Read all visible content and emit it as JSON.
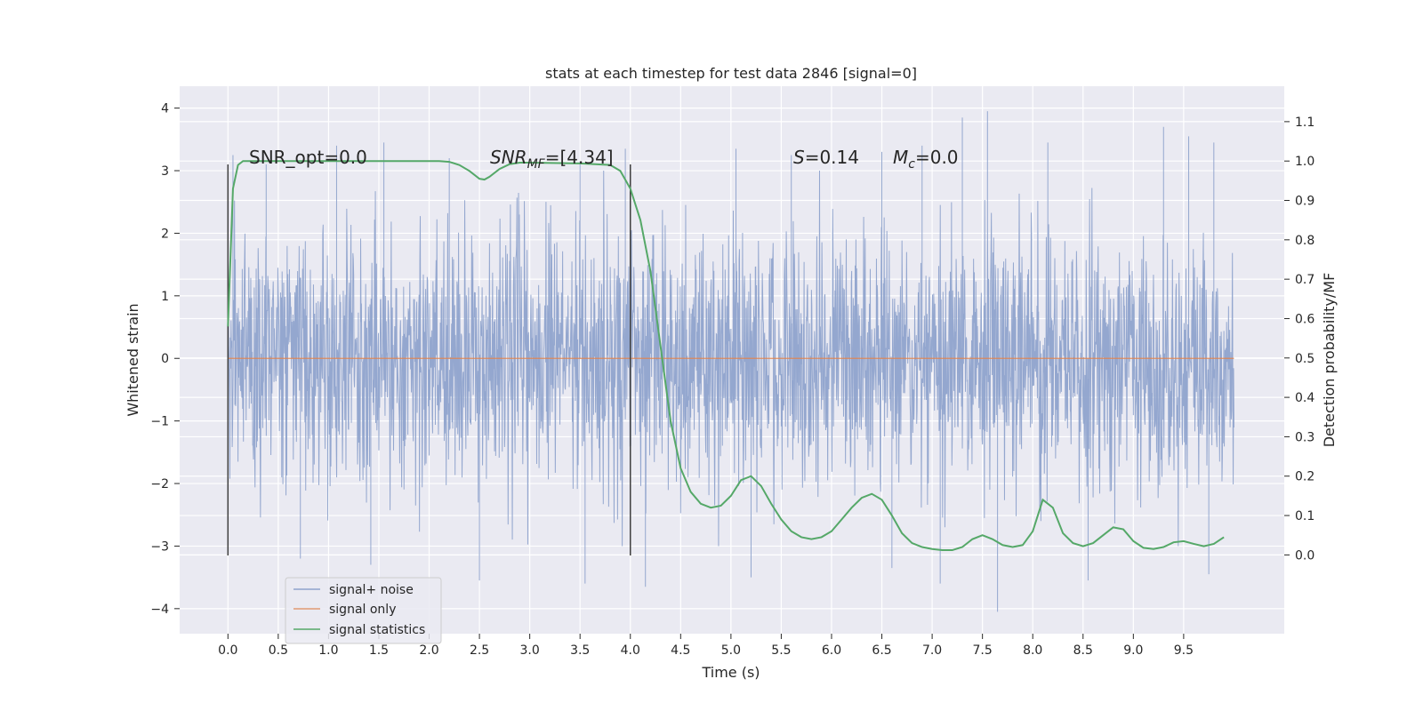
{
  "chart_data": {
    "type": "line",
    "title": "stats at each timestep for test data 2846 [signal=0]",
    "xlabel": "Time (s)",
    "ylabel": "Whitened strain",
    "ylabel_right": "Detection probability/MF",
    "xlim": [
      -0.48,
      10.5
    ],
    "ylim": [
      -4.4,
      4.35
    ],
    "ylim_right": [
      -0.2,
      1.19
    ],
    "xticks": [
      "0.0",
      "0.5",
      "1.0",
      "1.5",
      "2.0",
      "2.5",
      "3.0",
      "3.5",
      "4.0",
      "4.5",
      "5.0",
      "5.5",
      "6.0",
      "6.5",
      "7.0",
      "7.5",
      "8.0",
      "8.5",
      "9.0",
      "9.5"
    ],
    "yticks_left": [
      "−4",
      "−3",
      "−2",
      "−1",
      "0",
      "1",
      "2",
      "3",
      "4"
    ],
    "yticks_right": [
      "0.0",
      "0.1",
      "0.2",
      "0.3",
      "0.4",
      "0.5",
      "0.6",
      "0.7",
      "0.8",
      "0.9",
      "1.0",
      "1.1"
    ],
    "grid": true,
    "legend_position": "lower-left",
    "annotations": {
      "snr_opt": "SNR_opt=0.0",
      "snr_mf_main": "SNR",
      "snr_mf_sub": "MF",
      "snr_mf_rest": "=[4.34]",
      "s_main": "S",
      "s_rest": "=0.14",
      "mc_main": "M",
      "mc_sub": "c",
      "mc_rest": "=0.0"
    },
    "vlines": [
      0.0,
      4.0
    ],
    "vline_range": [
      -3.15,
      3.1
    ],
    "series": [
      {
        "name": "signal+ noise",
        "color": "#8fa3cc",
        "description": "dense whitened noise samples from 0 to 10 s",
        "x_range": [
          0.0,
          10.0
        ],
        "envelope_std": 1.0,
        "peak_values": [
          [
            0.05,
            3.25
          ],
          [
            0.38,
            3.1
          ],
          [
            0.72,
            -3.2
          ],
          [
            1.08,
            3.4
          ],
          [
            1.42,
            -3.3
          ],
          [
            1.55,
            3.45
          ],
          [
            2.2,
            3.2
          ],
          [
            2.5,
            -3.55
          ],
          [
            3.5,
            3.15
          ],
          [
            3.55,
            -3.6
          ],
          [
            3.95,
            3.35
          ],
          [
            4.15,
            -3.65
          ],
          [
            5.05,
            3.35
          ],
          [
            5.2,
            -3.5
          ],
          [
            5.6,
            3.25
          ],
          [
            6.5,
            3.3
          ],
          [
            6.6,
            -3.35
          ],
          [
            6.9,
            3.4
          ],
          [
            7.08,
            -3.6
          ],
          [
            7.3,
            3.85
          ],
          [
            7.55,
            3.95
          ],
          [
            7.65,
            -4.05
          ],
          [
            8.15,
            3.45
          ],
          [
            8.55,
            -3.55
          ],
          [
            9.3,
            3.7
          ],
          [
            9.55,
            3.55
          ],
          [
            9.75,
            -3.45
          ],
          [
            9.8,
            3.45
          ]
        ]
      },
      {
        "name": "signal only",
        "color": "#dd8452",
        "x": [
          0.0,
          10.0
        ],
        "y": [
          0.0,
          0.0
        ]
      },
      {
        "name": "signal statistics",
        "color": "#55a868",
        "axis": "right",
        "x": [
          0.0,
          0.05,
          0.1,
          0.15,
          0.2,
          0.3,
          0.5,
          1.0,
          1.5,
          2.0,
          2.1,
          2.2,
          2.3,
          2.4,
          2.5,
          2.55,
          2.6,
          2.7,
          2.8,
          2.9,
          3.0,
          3.5,
          3.8,
          3.9,
          4.0,
          4.1,
          4.2,
          4.3,
          4.4,
          4.5,
          4.6,
          4.7,
          4.8,
          4.9,
          5.0,
          5.1,
          5.2,
          5.3,
          5.4,
          5.5,
          5.6,
          5.7,
          5.8,
          5.9,
          6.0,
          6.1,
          6.2,
          6.3,
          6.4,
          6.5,
          6.6,
          6.7,
          6.8,
          6.9,
          7.0,
          7.1,
          7.2,
          7.3,
          7.4,
          7.5,
          7.6,
          7.7,
          7.8,
          7.9,
          8.0,
          8.05,
          8.1,
          8.2,
          8.3,
          8.4,
          8.5,
          8.6,
          8.7,
          8.8,
          8.9,
          9.0,
          9.1,
          9.2,
          9.3,
          9.4,
          9.5,
          9.6,
          9.7,
          9.8,
          9.9
        ],
        "y": [
          0.58,
          0.93,
          0.99,
          1.0,
          1.0,
          1.0,
          1.0,
          1.0,
          1.0,
          1.0,
          1.0,
          0.998,
          0.99,
          0.975,
          0.955,
          0.953,
          0.96,
          0.98,
          0.992,
          0.996,
          0.996,
          0.994,
          0.99,
          0.975,
          0.93,
          0.85,
          0.72,
          0.53,
          0.34,
          0.22,
          0.16,
          0.13,
          0.12,
          0.125,
          0.15,
          0.19,
          0.2,
          0.175,
          0.13,
          0.09,
          0.06,
          0.045,
          0.04,
          0.045,
          0.06,
          0.09,
          0.12,
          0.145,
          0.155,
          0.14,
          0.1,
          0.055,
          0.03,
          0.02,
          0.015,
          0.012,
          0.012,
          0.02,
          0.04,
          0.05,
          0.04,
          0.025,
          0.02,
          0.025,
          0.06,
          0.1,
          0.14,
          0.12,
          0.055,
          0.03,
          0.022,
          0.03,
          0.05,
          0.07,
          0.065,
          0.035,
          0.018,
          0.015,
          0.02,
          0.032,
          0.035,
          0.028,
          0.022,
          0.028,
          0.045
        ]
      }
    ]
  }
}
